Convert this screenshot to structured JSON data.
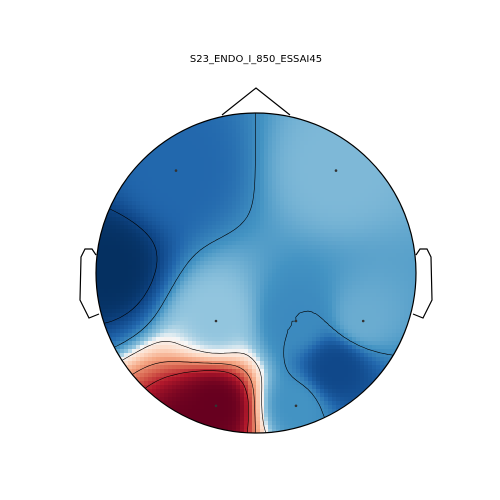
{
  "chart_data": {
    "type": "heatmap",
    "subtype": "eeg-topomap",
    "title": "S23_ENDO_I_850_ESSAI45",
    "xlabel": "",
    "ylabel": "",
    "colormap": "RdBu_r",
    "colors": {
      "high": "#7a0019",
      "low": "#0a3a6e",
      "outline": "#000000",
      "sensor": "#333333",
      "contour": "#000000"
    },
    "value_range": [
      -1,
      1
    ],
    "sensors": [
      {
        "x": -0.5,
        "y": 0.64,
        "value": -0.55
      },
      {
        "x": 0.5,
        "y": 0.64,
        "value": -0.15
      },
      {
        "x": -0.25,
        "y": -0.3,
        "value": -0.1
      },
      {
        "x": 0.25,
        "y": -0.3,
        "value": -0.35
      },
      {
        "x": 0.67,
        "y": -0.3,
        "value": -0.2
      },
      {
        "x": -0.25,
        "y": -0.83,
        "value": 1.0
      },
      {
        "x": 0.25,
        "y": -0.83,
        "value": -0.3
      }
    ],
    "extremes": [
      {
        "x": -0.92,
        "y": 0.03,
        "value": -1.0
      },
      {
        "x": 0.5,
        "y": -0.6,
        "value": -0.8
      },
      {
        "x": -0.35,
        "y": -0.95,
        "value": 1.0
      }
    ],
    "contour_levels": [
      -0.85,
      -0.35,
      0.05,
      0.45,
      0.75
    ]
  }
}
